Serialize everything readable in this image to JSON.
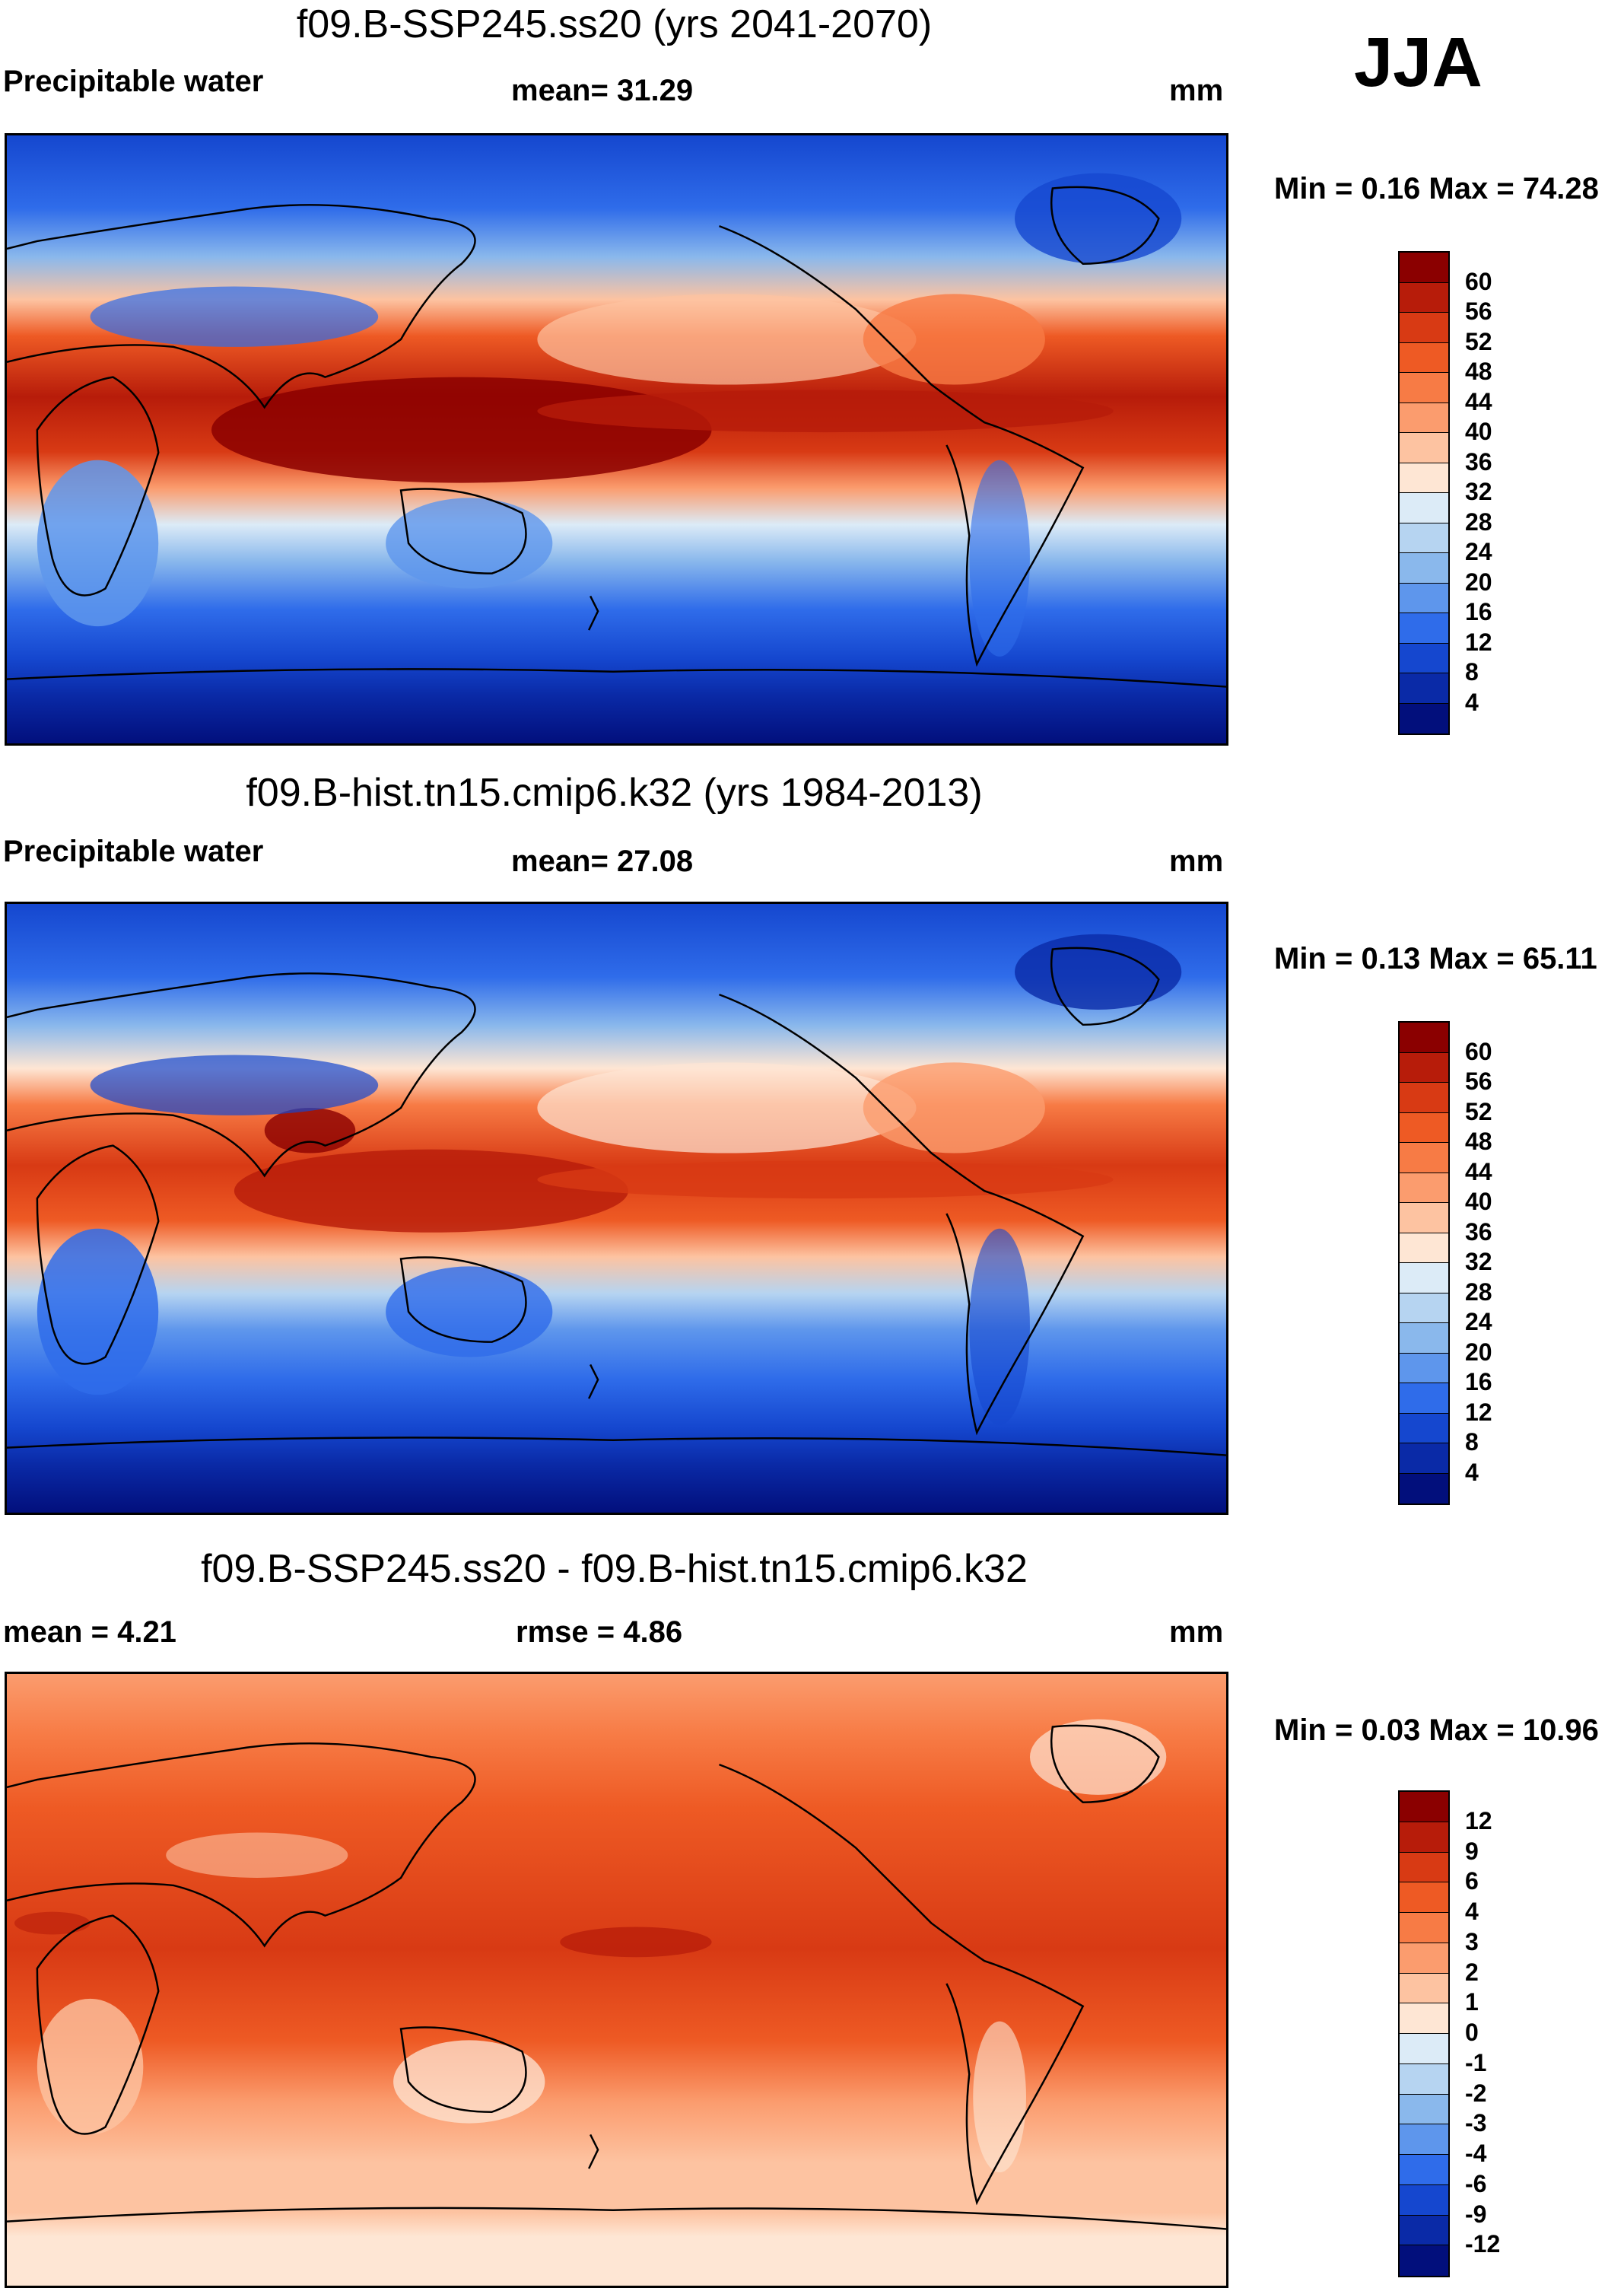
{
  "season": "JJA",
  "panels": [
    {
      "id": "future",
      "title": "f09.B-SSP245.ss20 (yrs 2041-2070)",
      "left_label": "Precipitable water",
      "center_label": "mean=  31.29",
      "units": "mm",
      "minmax": "Min =   0.16 Max =  74.28",
      "colorbar": {
        "colors": [
          "#8b0000",
          "#b71c0a",
          "#d83a14",
          "#ee5a24",
          "#f77b45",
          "#fb9c6e",
          "#fdc3a1",
          "#fee6d4",
          "#dcebf7",
          "#b6d4f1",
          "#8ab8ec",
          "#5e96ec",
          "#2f6cea",
          "#1547cf",
          "#0a2aa7",
          "#020f7c"
        ],
        "ticks": [
          "60",
          "56",
          "52",
          "48",
          "44",
          "40",
          "36",
          "32",
          "28",
          "24",
          "20",
          "16",
          "12",
          "8",
          "4"
        ]
      }
    },
    {
      "id": "historical",
      "title": "f09.B-hist.tn15.cmip6.k32 (yrs 1984-2013)",
      "left_label": "Precipitable water",
      "center_label": "mean=  27.08",
      "units": "mm",
      "minmax": "Min =   0.13 Max =  65.11",
      "colorbar": {
        "colors": [
          "#8b0000",
          "#b71c0a",
          "#d83a14",
          "#ee5a24",
          "#f77b45",
          "#fb9c6e",
          "#fdc3a1",
          "#fee6d4",
          "#dcebf7",
          "#b6d4f1",
          "#8ab8ec",
          "#5e96ec",
          "#2f6cea",
          "#1547cf",
          "#0a2aa7",
          "#020f7c"
        ],
        "ticks": [
          "60",
          "56",
          "52",
          "48",
          "44",
          "40",
          "36",
          "32",
          "28",
          "24",
          "20",
          "16",
          "12",
          "8",
          "4"
        ]
      }
    },
    {
      "id": "difference",
      "title": "f09.B-SSP245.ss20 - f09.B-hist.tn15.cmip6.k32",
      "left_label": "mean =    4.21",
      "center_label": "rmse =    4.86",
      "units": "mm",
      "minmax": "Min =   0.03 Max =  10.96",
      "colorbar": {
        "colors": [
          "#8b0000",
          "#b71c0a",
          "#d83a14",
          "#ee5a24",
          "#f77b45",
          "#fb9c6e",
          "#fdc3a1",
          "#fee6d4",
          "#dcebf7",
          "#b6d4f1",
          "#8ab8ec",
          "#5e96ec",
          "#2f6cea",
          "#1547cf",
          "#0a2aa7",
          "#020f7c"
        ],
        "ticks": [
          "12",
          "9",
          "6",
          "4",
          "3",
          "2",
          "1",
          "0",
          "-1",
          "-2",
          "-3",
          "-4",
          "-6",
          "-9",
          "-12"
        ]
      }
    }
  ]
}
